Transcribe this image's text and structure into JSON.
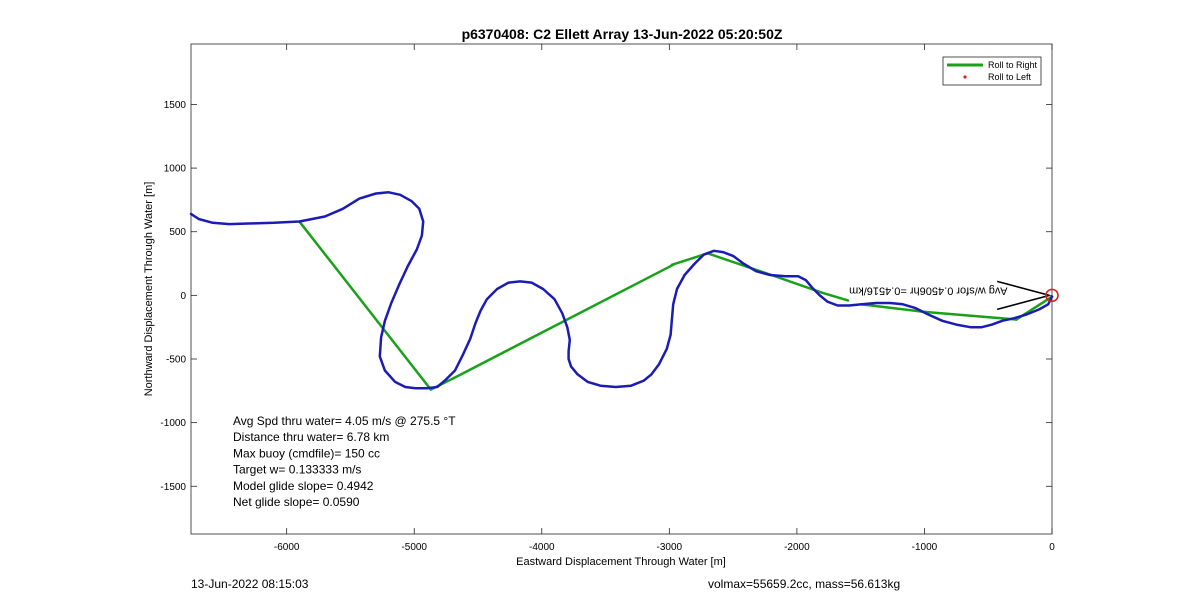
{
  "chart_data": {
    "type": "line",
    "title": "p6370408: C2 Ellett Array 13-Jun-2022 05:20:50Z",
    "xlabel": "Eastward Displacement Through Water [m]",
    "ylabel": "Northward Displacement Through Water [m]",
    "xlim": [
      -6750,
      0
    ],
    "ylim": [
      -1875,
      1975
    ],
    "xticks": [
      -6000,
      -5000,
      -4000,
      -3000,
      -2000,
      -1000,
      0
    ],
    "yticks": [
      -1500,
      -1000,
      -500,
      0,
      500,
      1000,
      1500
    ],
    "grid": false,
    "legend_position": "top-right",
    "legend": [
      {
        "label": "Roll to Right",
        "color": "#1aa11a",
        "style": "line"
      },
      {
        "label": "Roll to Left",
        "color": "#e02020",
        "style": "dot"
      }
    ],
    "colors": {
      "track": "#1c1cb4",
      "glide": "#1aa11a",
      "end_marker": "#e02020",
      "arrows": "#000000"
    },
    "series": [
      {
        "type": "track",
        "x": [
          -6750,
          -6690,
          -6580,
          -6450,
          -6300,
          -6100,
          -5900,
          -5700,
          -5560,
          -5430,
          -5300,
          -5200,
          -5110,
          -5020,
          -4960,
          -4930,
          -4940,
          -4980,
          -5050,
          -5120,
          -5180,
          -5230,
          -5260,
          -5270,
          -5230,
          -5150,
          -5070,
          -4990,
          -4900,
          -4820,
          -4760,
          -4680,
          -4620,
          -4560,
          -4520,
          -4480,
          -4430,
          -4350,
          -4260,
          -4170,
          -4080,
          -3990,
          -3900,
          -3840,
          -3800,
          -3780,
          -3790,
          -3790,
          -3770,
          -3720,
          -3640,
          -3540,
          -3420,
          -3300,
          -3200,
          -3140,
          -3080,
          -3020,
          -2990,
          -2980,
          -2970,
          -2940,
          -2880,
          -2800,
          -2730,
          -2650,
          -2580,
          -2500,
          -2420,
          -2320,
          -2210,
          -2090,
          -1990,
          -1930,
          -1880,
          -1820,
          -1760,
          -1680,
          -1590,
          -1490,
          -1380,
          -1270,
          -1170,
          -1070,
          -970,
          -860,
          -750,
          -640,
          -550,
          -470,
          -390,
          -300,
          -200,
          -100,
          -30,
          0
        ],
        "y": [
          640,
          600,
          570,
          560,
          565,
          570,
          580,
          620,
          680,
          760,
          800,
          810,
          790,
          740,
          680,
          580,
          470,
          360,
          230,
          80,
          -60,
          -200,
          -330,
          -480,
          -590,
          -680,
          -720,
          -730,
          -730,
          -720,
          -670,
          -590,
          -470,
          -340,
          -220,
          -120,
          -30,
          50,
          100,
          110,
          100,
          50,
          -30,
          -140,
          -250,
          -350,
          -440,
          -500,
          -560,
          -620,
          -680,
          -710,
          -720,
          -710,
          -670,
          -620,
          -540,
          -420,
          -310,
          -190,
          -70,
          50,
          160,
          250,
          320,
          350,
          340,
          310,
          250,
          190,
          160,
          150,
          150,
          120,
          60,
          0,
          -50,
          -80,
          -80,
          -70,
          -60,
          -60,
          -70,
          -100,
          -150,
          -200,
          -230,
          -250,
          -250,
          -230,
          -200,
          -180,
          -150,
          -110,
          -70,
          -10
        ]
      },
      {
        "type": "glide",
        "name": "Roll to Right",
        "segments": [
          {
            "x": [
              -5900,
              -4870
            ],
            "y": [
              580,
              -740
            ]
          },
          {
            "x": [
              -4870,
              -4690
            ],
            "y": [
              -740,
              -650
            ]
          },
          {
            "x": [
              -4690,
              -2970
            ],
            "y": [
              -650,
              240
            ]
          },
          {
            "x": [
              -2980,
              -2700
            ],
            "y": [
              240,
              330
            ]
          },
          {
            "x": [
              -2700,
              -2200
            ],
            "y": [
              330,
              160
            ]
          },
          {
            "x": [
              -2200,
              -1800
            ],
            "y": [
              160,
              20
            ]
          },
          {
            "x": [
              -1800,
              -1600
            ],
            "y": [
              20,
              -40
            ]
          },
          {
            "x": [
              -1500,
              -1000
            ],
            "y": [
              -70,
              -130
            ]
          },
          {
            "x": [
              -1000,
              -280
            ],
            "y": [
              -130,
              -190
            ]
          },
          {
            "x": [
              -280,
              0
            ],
            "y": [
              -190,
              -10
            ]
          }
        ]
      }
    ],
    "end_marker": {
      "x": 0,
      "y": 0
    },
    "annotation": "Avg w/sfor 0.4506hr =0.4516/km",
    "arrows": [
      {
        "x": [
          -430,
          -20
        ],
        "y": [
          110,
          0
        ]
      },
      {
        "x": [
          -430,
          -20
        ],
        "y": [
          -110,
          0
        ]
      }
    ],
    "stats": [
      "Avg Spd thru water=  4.05 m/s @ 275.5 °T",
      "Distance thru water=  6.78 km",
      "Max buoy (cmdfile)= 150 cc",
      "Target w= 0.133333 m/s",
      "Model glide slope= 0.4942",
      "Net glide slope= 0.0590"
    ]
  },
  "footer": {
    "left": "13-Jun-2022 08:15:03",
    "right": "volmax=55659.2cc, mass=56.613kg"
  }
}
